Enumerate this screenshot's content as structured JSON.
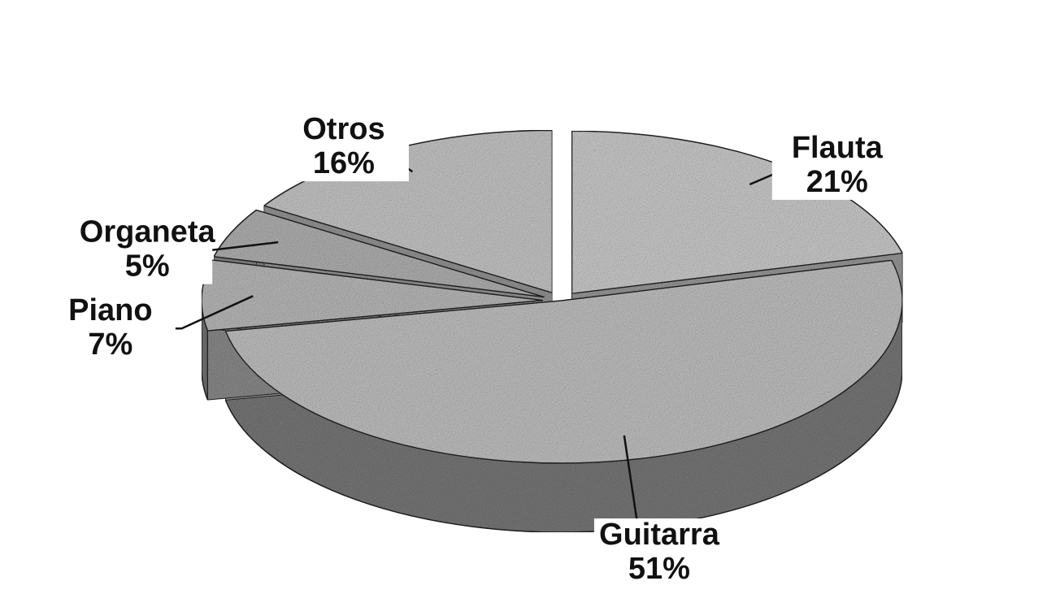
{
  "chart_data": {
    "type": "pie",
    "categories": [
      "Flauta",
      "Guitarra",
      "Piano",
      "Organeta",
      "Otros"
    ],
    "values": [
      21,
      51,
      7,
      5,
      16
    ],
    "value_labels": [
      "21%",
      "51%",
      "7%",
      "5%",
      "16%"
    ],
    "colors": [
      "#cfcfcf",
      "#c4c4c4",
      "#bcbcbc",
      "#b4b4b4",
      "#c9c9c9"
    ]
  }
}
